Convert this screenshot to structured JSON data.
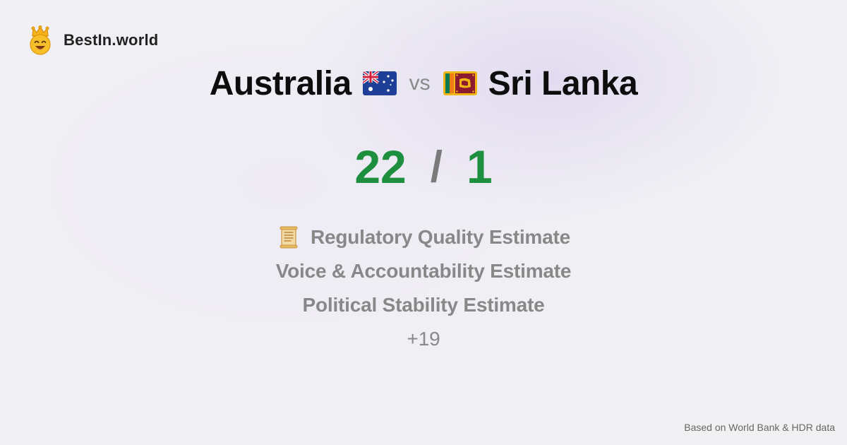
{
  "brand": {
    "name": "BestIn.world",
    "logo_icon": "crowned-smiley-icon"
  },
  "comparison": {
    "left_country": "Australia",
    "left_flag": "australia-flag-icon",
    "vs_label": "vs",
    "right_country": "Sri Lanka",
    "right_flag": "sri-lanka-flag-icon"
  },
  "score": {
    "left": "22",
    "separator": "/",
    "right": "1",
    "color": "#1e8f3e"
  },
  "metrics": {
    "items": [
      {
        "label": "Regulatory Quality Estimate",
        "icon": "scroll-icon"
      },
      {
        "label": "Voice & Accountability Estimate"
      },
      {
        "label": "Political Stability Estimate"
      }
    ],
    "more": "+19"
  },
  "footer": {
    "source": "Based on World Bank & HDR data"
  }
}
